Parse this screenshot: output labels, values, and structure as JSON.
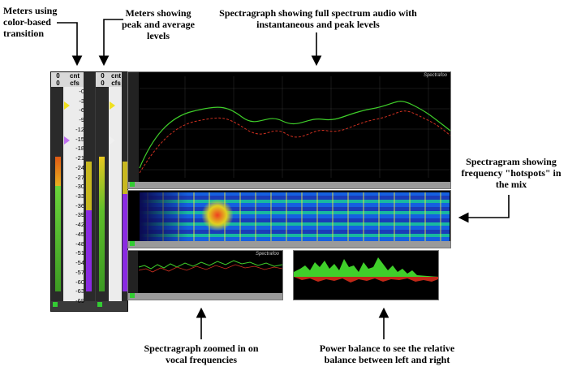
{
  "annotations": {
    "meters_color": "Meters using\ncolor-based\ntransition",
    "meters_peak": "Meters showing\npeak and average\nlevels",
    "spectragraph_full": "Spectragraph showing full spectrum audio with\ninstantaneous and peak levels",
    "spectragram": "Spectragram showing\nfrequency \"hotspots\" in\nthe mix",
    "spectragraph_vocal": "Spectragraph zoomed in on\nvocal frequencies",
    "power_balance": "Power balance to see the relative\nbalance between left and right"
  },
  "meters": {
    "header_value": "0",
    "cnt_label": "cnt",
    "cfs_label": "cfs",
    "scale": [
      "-0",
      "-3",
      "-6",
      "-9",
      "-12",
      "-15",
      "-18",
      "-21",
      "-24",
      "-27",
      "-30",
      "-33",
      "-36",
      "-39",
      "-42",
      "-45",
      "-48",
      "-51",
      "-54",
      "-57",
      "-60",
      "-63",
      "-69"
    ]
  },
  "spectragraph": {
    "title": "Spectrafoo"
  },
  "spectragraph_vocal": {
    "title": "Spectrafoo"
  },
  "colors": {
    "green_meter": "#3fbf2a",
    "purple_meter": "#8a2be2",
    "yellow_meter": "#d7c21c",
    "marker": "#f0e020",
    "background": "#000000"
  }
}
